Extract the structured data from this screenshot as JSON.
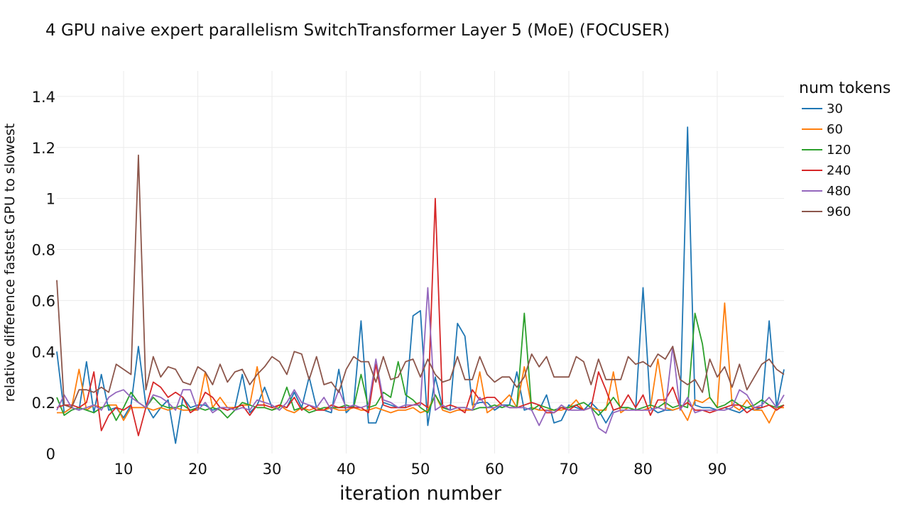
{
  "chart_data": {
    "type": "line",
    "title": "4 GPU naive expert parallelism SwitchTransformer Layer 5 (MoE) (FOCUSER)",
    "xlabel": "iteration number",
    "ylabel": "relative difference fastest GPU to slowest",
    "xlim": [
      1,
      99
    ],
    "ylim": [
      0,
      1.5
    ],
    "xticks": [
      10,
      20,
      30,
      40,
      50,
      60,
      70,
      80,
      90
    ],
    "xtick_labels": [
      "10",
      "20",
      "30",
      "40",
      "50",
      "60",
      "70",
      "80",
      "90"
    ],
    "yticks": [
      0,
      0.2,
      0.4,
      0.6,
      0.8,
      1.0,
      1.2,
      1.4
    ],
    "ytick_labels": [
      "0",
      "0.2",
      "0.4",
      "0.6",
      "0.8",
      "1",
      "1.2",
      "1.4"
    ],
    "grid": true,
    "legend": {
      "title": "num tokens",
      "position": "top-right-outside"
    },
    "x_start": 1,
    "series": [
      {
        "name": "30",
        "color": "#1f77b4",
        "values": [
          0.4,
          0.16,
          0.18,
          0.17,
          0.36,
          0.16,
          0.31,
          0.17,
          0.18,
          0.14,
          0.19,
          0.42,
          0.19,
          0.14,
          0.18,
          0.21,
          0.04,
          0.22,
          0.18,
          0.19,
          0.19,
          0.17,
          0.18,
          0.17,
          0.18,
          0.31,
          0.16,
          0.19,
          0.26,
          0.18,
          0.19,
          0.18,
          0.24,
          0.18,
          0.3,
          0.18,
          0.17,
          0.16,
          0.33,
          0.16,
          0.19,
          0.52,
          0.12,
          0.12,
          0.2,
          0.19,
          0.18,
          0.18,
          0.54,
          0.56,
          0.11,
          0.3,
          0.18,
          0.17,
          0.51,
          0.46,
          0.19,
          0.2,
          0.2,
          0.17,
          0.19,
          0.19,
          0.32,
          0.17,
          0.18,
          0.17,
          0.23,
          0.12,
          0.13,
          0.19,
          0.18,
          0.17,
          0.2,
          0.17,
          0.12,
          0.17,
          0.18,
          0.18,
          0.17,
          0.65,
          0.18,
          0.16,
          0.17,
          0.17,
          0.18,
          1.28,
          0.19,
          0.18,
          0.18,
          0.17,
          0.18,
          0.17,
          0.16,
          0.18,
          0.17,
          0.18,
          0.52,
          0.18,
          0.33
        ]
      },
      {
        "name": "60",
        "color": "#ff7f0e",
        "values": [
          0.16,
          0.16,
          0.18,
          0.33,
          0.17,
          0.19,
          0.18,
          0.19,
          0.19,
          0.13,
          0.18,
          0.18,
          0.18,
          0.17,
          0.18,
          0.17,
          0.18,
          0.17,
          0.17,
          0.17,
          0.32,
          0.18,
          0.22,
          0.18,
          0.18,
          0.19,
          0.19,
          0.34,
          0.18,
          0.17,
          0.19,
          0.17,
          0.16,
          0.18,
          0.17,
          0.18,
          0.17,
          0.18,
          0.17,
          0.17,
          0.18,
          0.17,
          0.17,
          0.18,
          0.17,
          0.16,
          0.17,
          0.17,
          0.18,
          0.16,
          0.17,
          0.23,
          0.17,
          0.16,
          0.17,
          0.17,
          0.17,
          0.32,
          0.16,
          0.18,
          0.2,
          0.23,
          0.18,
          0.34,
          0.18,
          0.17,
          0.17,
          0.17,
          0.17,
          0.18,
          0.21,
          0.17,
          0.18,
          0.17,
          0.17,
          0.32,
          0.16,
          0.18,
          0.17,
          0.17,
          0.18,
          0.37,
          0.18,
          0.17,
          0.18,
          0.13,
          0.21,
          0.2,
          0.22,
          0.18,
          0.59,
          0.19,
          0.17,
          0.21,
          0.17,
          0.17,
          0.12,
          0.18,
          0.18
        ]
      },
      {
        "name": "120",
        "color": "#2ca02c",
        "values": [
          0.22,
          0.15,
          0.17,
          0.18,
          0.17,
          0.16,
          0.18,
          0.19,
          0.13,
          0.18,
          0.24,
          0.2,
          0.18,
          0.22,
          0.19,
          0.18,
          0.18,
          0.19,
          0.17,
          0.18,
          0.17,
          0.18,
          0.17,
          0.14,
          0.17,
          0.2,
          0.19,
          0.18,
          0.18,
          0.17,
          0.18,
          0.26,
          0.17,
          0.18,
          0.16,
          0.17,
          0.18,
          0.18,
          0.18,
          0.19,
          0.18,
          0.31,
          0.18,
          0.19,
          0.24,
          0.22,
          0.36,
          0.23,
          0.21,
          0.18,
          0.16,
          0.23,
          0.18,
          0.17,
          0.18,
          0.18,
          0.17,
          0.18,
          0.18,
          0.19,
          0.18,
          0.19,
          0.18,
          0.55,
          0.17,
          0.19,
          0.18,
          0.17,
          0.18,
          0.18,
          0.19,
          0.2,
          0.18,
          0.15,
          0.18,
          0.22,
          0.18,
          0.18,
          0.17,
          0.18,
          0.19,
          0.18,
          0.2,
          0.18,
          0.19,
          0.18,
          0.55,
          0.43,
          0.22,
          0.18,
          0.19,
          0.21,
          0.19,
          0.18,
          0.19,
          0.21,
          0.19,
          0.18,
          0.19
        ]
      },
      {
        "name": "240",
        "color": "#d62728",
        "values": [
          0.18,
          0.19,
          0.19,
          0.18,
          0.2,
          0.32,
          0.09,
          0.15,
          0.18,
          0.17,
          0.19,
          0.07,
          0.18,
          0.28,
          0.26,
          0.22,
          0.24,
          0.22,
          0.16,
          0.18,
          0.24,
          0.22,
          0.18,
          0.17,
          0.18,
          0.19,
          0.15,
          0.19,
          0.19,
          0.18,
          0.19,
          0.18,
          0.22,
          0.17,
          0.19,
          0.17,
          0.17,
          0.19,
          0.18,
          0.18,
          0.18,
          0.18,
          0.16,
          0.35,
          0.19,
          0.18,
          0.18,
          0.18,
          0.19,
          0.2,
          0.18,
          1.0,
          0.18,
          0.19,
          0.18,
          0.16,
          0.25,
          0.21,
          0.22,
          0.22,
          0.19,
          0.18,
          0.18,
          0.19,
          0.2,
          0.19,
          0.16,
          0.16,
          0.18,
          0.17,
          0.19,
          0.17,
          0.18,
          0.32,
          0.25,
          0.17,
          0.18,
          0.23,
          0.18,
          0.23,
          0.15,
          0.21,
          0.21,
          0.26,
          0.18,
          0.2,
          0.17,
          0.17,
          0.16,
          0.17,
          0.18,
          0.19,
          0.19,
          0.16,
          0.18,
          0.18,
          0.19,
          0.17,
          0.19
        ]
      },
      {
        "name": "480",
        "color": "#9467bd",
        "values": [
          0.17,
          0.23,
          0.18,
          0.17,
          0.18,
          0.19,
          0.17,
          0.22,
          0.24,
          0.25,
          0.22,
          0.2,
          0.18,
          0.23,
          0.22,
          0.2,
          0.17,
          0.25,
          0.25,
          0.17,
          0.2,
          0.16,
          0.18,
          0.18,
          0.17,
          0.18,
          0.17,
          0.21,
          0.2,
          0.19,
          0.17,
          0.2,
          0.25,
          0.2,
          0.19,
          0.18,
          0.22,
          0.17,
          0.25,
          0.18,
          0.19,
          0.18,
          0.19,
          0.37,
          0.21,
          0.2,
          0.18,
          0.19,
          0.19,
          0.19,
          0.65,
          0.17,
          0.19,
          0.17,
          0.18,
          0.18,
          0.17,
          0.22,
          0.18,
          0.18,
          0.19,
          0.18,
          0.18,
          0.18,
          0.17,
          0.11,
          0.17,
          0.16,
          0.19,
          0.17,
          0.17,
          0.17,
          0.18,
          0.1,
          0.08,
          0.16,
          0.17,
          0.17,
          0.17,
          0.17,
          0.17,
          0.18,
          0.17,
          0.42,
          0.17,
          0.22,
          0.16,
          0.17,
          0.17,
          0.17,
          0.17,
          0.18,
          0.25,
          0.23,
          0.18,
          0.19,
          0.22,
          0.18,
          0.23
        ]
      },
      {
        "name": "960",
        "color": "#8c564b",
        "values": [
          0.68,
          0.19,
          0.18,
          0.25,
          0.25,
          0.24,
          0.26,
          0.24,
          0.35,
          0.33,
          0.31,
          1.17,
          0.25,
          0.38,
          0.3,
          0.34,
          0.33,
          0.28,
          0.27,
          0.34,
          0.32,
          0.27,
          0.35,
          0.28,
          0.32,
          0.33,
          0.27,
          0.31,
          0.34,
          0.38,
          0.36,
          0.31,
          0.4,
          0.39,
          0.29,
          0.38,
          0.27,
          0.28,
          0.24,
          0.33,
          0.38,
          0.36,
          0.36,
          0.28,
          0.38,
          0.29,
          0.3,
          0.36,
          0.37,
          0.3,
          0.37,
          0.31,
          0.28,
          0.29,
          0.38,
          0.29,
          0.29,
          0.38,
          0.31,
          0.28,
          0.3,
          0.3,
          0.26,
          0.3,
          0.39,
          0.34,
          0.38,
          0.3,
          0.3,
          0.3,
          0.38,
          0.36,
          0.27,
          0.37,
          0.29,
          0.29,
          0.29,
          0.38,
          0.35,
          0.36,
          0.34,
          0.39,
          0.37,
          0.42,
          0.29,
          0.27,
          0.29,
          0.24,
          0.37,
          0.3,
          0.34,
          0.26,
          0.35,
          0.25,
          0.3,
          0.35,
          0.37,
          0.33,
          0.31
        ]
      }
    ]
  }
}
